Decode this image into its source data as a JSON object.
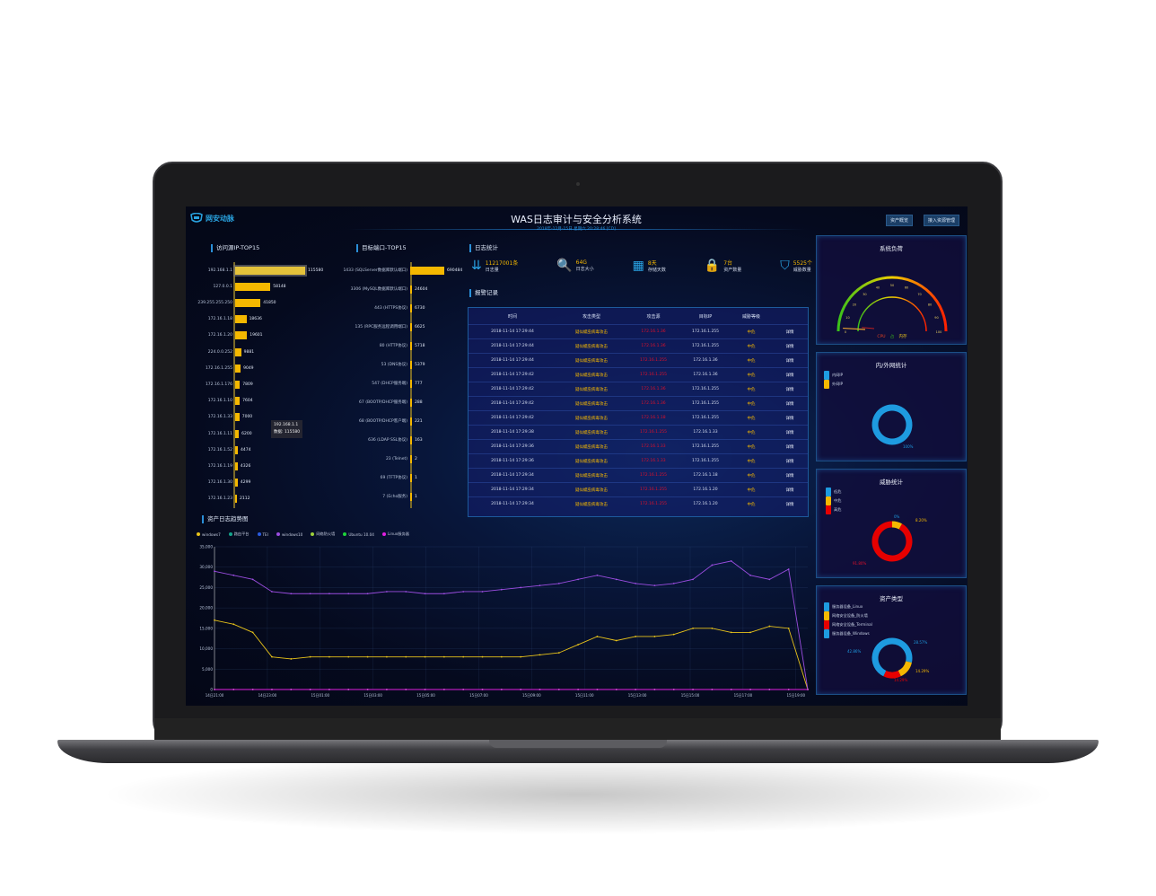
{
  "header": {
    "logo_text": "网安动脉",
    "title": "WAS日志审计与安全分析系统",
    "subtitle": "2018年-12月-15日 星期六 20:28:46 [CD]",
    "buttons": [
      "资产概览",
      "接入资源管理"
    ]
  },
  "source_ip": {
    "title": "访问源IP-TOP15",
    "items": [
      {
        "label": "192.168.1.1",
        "value": 115580
      },
      {
        "label": "127.0.0.1",
        "value": 58148
      },
      {
        "label": "239.255.255.250",
        "value": 41850
      },
      {
        "label": "172.16.1.18",
        "value": 18636
      },
      {
        "label": "172.16.1.20",
        "value": 19601
      },
      {
        "label": "224.0.0.252",
        "value": 9881
      },
      {
        "label": "172.16.1.255",
        "value": 9049
      },
      {
        "label": "172.16.1.176",
        "value": 7809
      },
      {
        "label": "172.16.1.10",
        "value": 7604
      },
      {
        "label": "172.16.1.33",
        "value": 7000
      },
      {
        "label": "172.16.1.11",
        "value": 6200
      },
      {
        "label": "172.16.1.52",
        "value": 4474
      },
      {
        "label": "172.16.1.19",
        "value": 4326
      },
      {
        "label": "172.16.1.30",
        "value": 4299
      },
      {
        "label": "172.16.1.23",
        "value": 2112
      }
    ],
    "tooltip": {
      "label": "192.168.1.1",
      "value_text": "数据: 115580"
    }
  },
  "target_port": {
    "title": "目标端口-TOP15",
    "items": [
      {
        "label": "1433 (SQLServer数据库默认端口)",
        "value": 690484
      },
      {
        "label": "3306 (MySQL数据库默认端口)",
        "value": 24604
      },
      {
        "label": "443 (HTTPS协议)",
        "value": 6730
      },
      {
        "label": "135 (RPC服务远程调用端口)",
        "value": 6625
      },
      {
        "label": "80 (HTTP协议)",
        "value": 5718
      },
      {
        "label": "53 (DNS协议)",
        "value": 5379
      },
      {
        "label": "547 (DHCP服务端)",
        "value": 777
      },
      {
        "label": "67 (BOOTP/DHCP服务端)",
        "value": 288
      },
      {
        "label": "68 (BOOTP/DHCP客户端)",
        "value": 221
      },
      {
        "label": "636 (LDAP SSL协议)",
        "value": 163
      },
      {
        "label": "23 (Telnet)",
        "value": 2
      },
      {
        "label": "69 (TFTP协议)",
        "value": 1
      },
      {
        "label": "7 (Echo服务)",
        "value": 1
      }
    ]
  },
  "log_stats": {
    "title": "日志统计",
    "items": [
      {
        "icon": "sort-bars-icon",
        "value": "11217001条",
        "label": "日志量"
      },
      {
        "icon": "zoom-search-icon",
        "value": "64G",
        "label": "日志大小"
      },
      {
        "icon": "calendar-icon",
        "value": "8天",
        "label": "存储天数"
      },
      {
        "icon": "lock-icon",
        "value": "7台",
        "label": "资产数量"
      },
      {
        "icon": "shield-icon",
        "value": "5525个",
        "label": "威胁数量"
      }
    ]
  },
  "alerts": {
    "title": "报警记录",
    "columns": [
      "时间",
      "攻击类型",
      "攻击源",
      "目标IP",
      "威胁等级",
      ""
    ],
    "rows": [
      [
        "2018-11-14 17:29:44",
        "疑似蠕虫病毒攻击",
        "172.16.1.36",
        "172.16.1.255",
        "中危",
        "详情"
      ],
      [
        "2018-11-14 17:29:44",
        "疑似蠕虫病毒攻击",
        "172.16.1.36",
        "172.16.1.255",
        "中危",
        "详情"
      ],
      [
        "2018-11-14 17:29:44",
        "疑似蠕虫病毒攻击",
        "172.16.1.255",
        "172.16.1.36",
        "中危",
        "详情"
      ],
      [
        "2018-11-14 17:29:42",
        "疑似蠕虫病毒攻击",
        "172.16.1.255",
        "172.16.1.36",
        "中危",
        "详情"
      ],
      [
        "2018-11-14 17:29:42",
        "疑似蠕虫病毒攻击",
        "172.16.1.36",
        "172.16.1.255",
        "中危",
        "详情"
      ],
      [
        "2018-11-14 17:29:42",
        "疑似蠕虫病毒攻击",
        "172.16.1.36",
        "172.16.1.255",
        "中危",
        "详情"
      ],
      [
        "2018-11-14 17:29:42",
        "疑似蠕虫病毒攻击",
        "172.16.1.18",
        "172.16.1.255",
        "中危",
        "详情"
      ],
      [
        "2018-11-14 17:29:38",
        "疑似蠕虫病毒攻击",
        "172.16.1.255",
        "172.16.1.33",
        "中危",
        "详情"
      ],
      [
        "2018-11-14 17:29:36",
        "疑似蠕虫病毒攻击",
        "172.16.1.33",
        "172.16.1.255",
        "中危",
        "详情"
      ],
      [
        "2018-11-14 17:29:36",
        "疑似蠕虫病毒攻击",
        "172.16.1.33",
        "172.16.1.255",
        "中危",
        "详情"
      ],
      [
        "2018-11-14 17:29:34",
        "疑似蠕虫病毒攻击",
        "172.16.1.255",
        "172.16.1.18",
        "中危",
        "详情"
      ],
      [
        "2018-11-14 17:29:34",
        "疑似蠕虫病毒攻击",
        "172.16.1.255",
        "172.16.1.20",
        "中危",
        "详情"
      ],
      [
        "2018-11-14 17:29:34",
        "疑似蠕虫病毒攻击",
        "172.16.1.255",
        "172.16.1.20",
        "中危",
        "详情"
      ]
    ]
  },
  "gauge": {
    "title": "系统负荷",
    "ticks": [
      "0",
      "10",
      "20",
      "30",
      "40",
      "50",
      "60",
      "70",
      "80",
      "90",
      "100"
    ],
    "labels": [
      "CPU",
      "占",
      "内存"
    ],
    "cpu": 2,
    "memory": 4
  },
  "net": {
    "title": "内/外网统计",
    "legend": [
      "内网IP",
      "外网IP"
    ],
    "values": [
      100,
      0
    ],
    "label": "100%",
    "colors": [
      "#1e9be0",
      "#f5b800"
    ]
  },
  "threat": {
    "title": "威胁统计",
    "legend": [
      "低危",
      "中危",
      "高危"
    ],
    "values": [
      0,
      8.2,
      91.8
    ],
    "labels": [
      "0%",
      "8.20%",
      "91.80%"
    ],
    "colors": [
      "#1e9be0",
      "#f5b800",
      "#e60000"
    ]
  },
  "assets": {
    "title": "资产类型",
    "legend": [
      "服务器设备_Linux",
      "网络安全设备_防火墙",
      "网络安全设备_Terminal",
      "服务器设备_Windows"
    ],
    "values": [
      28.57,
      14.29,
      14.29,
      42.86
    ],
    "labels": [
      "28.57%",
      "14.29%",
      "14.29%",
      "42.86%"
    ],
    "colors": [
      "#1e9be0",
      "#f5b800",
      "#e60000",
      "#1e9be0"
    ]
  },
  "chart_data": {
    "type": "line",
    "title": "资产日志趋势图",
    "ylim": [
      0,
      35000
    ],
    "yticks": [
      "0",
      "5,000",
      "10,000",
      "15,000",
      "20,000",
      "25,000",
      "30,000",
      "35,000"
    ],
    "xticks": [
      "14日21:00",
      "14日23:00",
      "15日01:00",
      "15日03:00",
      "15日05:00",
      "15日07:00",
      "15日09:00",
      "15日11:00",
      "15日13:00",
      "15日15:00",
      "15日17:00",
      "15日19:00"
    ],
    "series": [
      {
        "name": "windows7",
        "color": "#e8c31a",
        "values": [
          17000,
          16000,
          14000,
          8000,
          7500,
          8000,
          8000,
          8000,
          8000,
          8000,
          8000,
          8000,
          8000,
          8000,
          8000,
          8000,
          8000,
          8500,
          9000,
          11000,
          13000,
          12000,
          13000,
          13000,
          13500,
          15000,
          15000,
          14000,
          14000,
          15500,
          15000,
          0
        ]
      },
      {
        "name": "路由平台",
        "color": "#14a38b",
        "values": [
          0,
          0,
          0,
          0,
          0,
          0,
          0,
          0,
          0,
          0,
          0,
          0,
          0,
          0,
          0,
          0,
          0,
          0,
          0,
          0,
          0,
          0,
          0,
          0,
          0,
          0,
          0,
          0,
          0,
          0,
          0,
          0
        ]
      },
      {
        "name": "TEI",
        "color": "#2a5be0",
        "values": [
          0,
          0,
          0,
          0,
          0,
          0,
          0,
          0,
          0,
          0,
          0,
          0,
          0,
          0,
          0,
          0,
          0,
          0,
          0,
          0,
          0,
          0,
          0,
          0,
          0,
          0,
          0,
          0,
          0,
          0,
          0,
          0
        ]
      },
      {
        "name": "windows10",
        "color": "#9b4de0",
        "values": [
          29000,
          28000,
          27000,
          24000,
          23500,
          23500,
          23500,
          23500,
          23500,
          24000,
          24000,
          23500,
          23500,
          24000,
          24000,
          24500,
          25000,
          25500,
          26000,
          27000,
          28000,
          27000,
          26000,
          25500,
          26000,
          27000,
          30500,
          31500,
          28000,
          27000,
          29500,
          0
        ]
      },
      {
        "name": "网络防火墙",
        "color": "#9ccf3a",
        "values": [
          0,
          0,
          0,
          0,
          0,
          0,
          0,
          0,
          0,
          0,
          0,
          0,
          0,
          0,
          0,
          0,
          0,
          0,
          0,
          0,
          0,
          0,
          0,
          0,
          0,
          0,
          0,
          0,
          0,
          0,
          0,
          0
        ]
      },
      {
        "name": "Ubuntu 10.04",
        "color": "#1ed43a",
        "values": [
          0,
          0,
          0,
          0,
          0,
          0,
          0,
          0,
          0,
          0,
          0,
          0,
          0,
          0,
          0,
          0,
          0,
          0,
          0,
          0,
          0,
          0,
          0,
          0,
          0,
          0,
          0,
          0,
          0,
          0,
          0,
          0
        ]
      },
      {
        "name": "Linux服务器",
        "color": "#e020e0",
        "values": [
          0,
          0,
          0,
          0,
          0,
          0,
          0,
          0,
          0,
          0,
          0,
          0,
          0,
          0,
          0,
          0,
          0,
          0,
          0,
          0,
          0,
          0,
          0,
          0,
          0,
          0,
          0,
          0,
          0,
          0,
          0,
          0
        ]
      }
    ]
  }
}
